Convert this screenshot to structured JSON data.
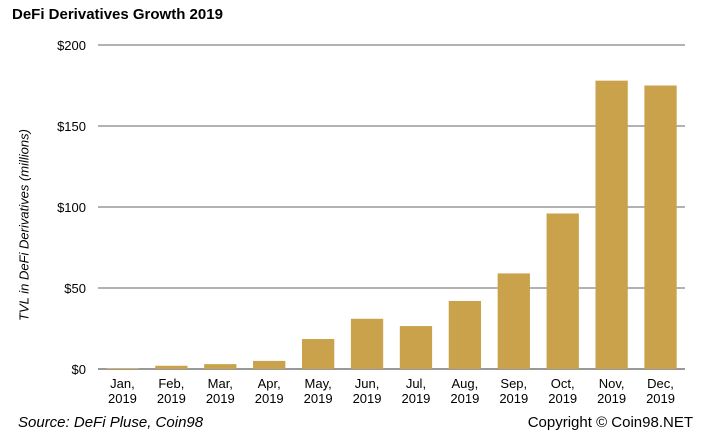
{
  "chart_data": {
    "type": "bar",
    "title": "DeFi Derivatives Growth 2019",
    "ylabel": "TVL in DeFi Derivatives (millions)",
    "xlabel": "",
    "categories": [
      [
        "Jan,",
        "2019"
      ],
      [
        "Feb,",
        "2019"
      ],
      [
        "Mar,",
        "2019"
      ],
      [
        "Apr,",
        "2019"
      ],
      [
        "May,",
        "2019"
      ],
      [
        "Jun,",
        "2019"
      ],
      [
        "Jul,",
        "2019"
      ],
      [
        "Aug,",
        "2019"
      ],
      [
        "Sep,",
        "2019"
      ],
      [
        "Oct,",
        "2019"
      ],
      [
        "Nov,",
        "2019"
      ],
      [
        "Dec,",
        "2019"
      ]
    ],
    "values": [
      0.5,
      2,
      3,
      5,
      18.5,
      31,
      26.5,
      42,
      59,
      96,
      178,
      175
    ],
    "ylim": [
      0,
      200
    ],
    "yticks": [
      0,
      50,
      100,
      150,
      200
    ],
    "ytick_labels": [
      "$0",
      "$50",
      "$100",
      "$150",
      "$200"
    ],
    "grid": true,
    "bar_color": "#c9a24b"
  },
  "footer": {
    "source": "Source: DeFi Pluse, Coin98",
    "copyright": "Copyright © Coin98.NET"
  }
}
